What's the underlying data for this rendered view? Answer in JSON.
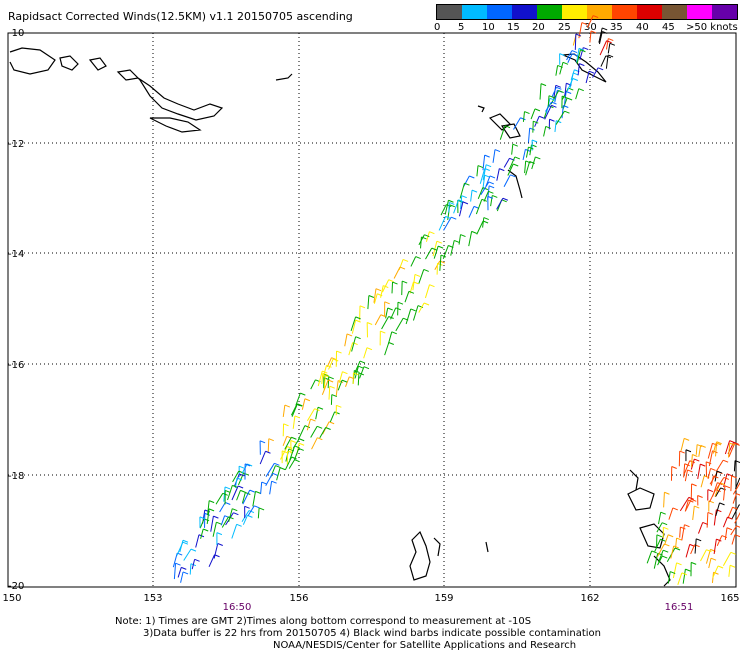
{
  "title": "Rapidsact Corrected Winds(12.5KM) v1.1 20150705 ascending",
  "legend": {
    "colors": [
      "#555555",
      "#00bbff",
      "#0066ff",
      "#1111cc",
      "#00aa00",
      "#ffee00",
      "#ffaa00",
      "#ff4400",
      "#dd0000",
      "#775533",
      "#ff00ff",
      "#6600aa"
    ],
    "labels": [
      "0",
      "5",
      "10",
      "15",
      "20",
      "25",
      "30",
      "35",
      "40",
      "45",
      ">50 knots"
    ]
  },
  "axes": {
    "lat_labels": [
      "-10",
      "-12",
      "-14",
      "-16",
      "-18",
      "-20"
    ],
    "lon_labels": [
      "150",
      "153",
      "156",
      "159",
      "162",
      "165"
    ]
  },
  "time_labels": {
    "left": "16:50",
    "right": "16:51",
    "color": "#660066"
  },
  "notes": {
    "line1": "Note: 1) Times are GMT 2)Times along bottom correspond to measurement at -10S",
    "line2": "3)Data buffer is 22 hrs from 20150705 4) Black wind barbs indicate possible contamination",
    "line3": "NOAA/NESDIS/Center for Satellite Applications and Research"
  }
}
